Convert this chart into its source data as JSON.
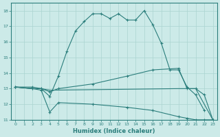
{
  "xlabel": "Humidex (Indice chaleur)",
  "bg_color": "#cceae8",
  "grid_color": "#aad4d0",
  "line_color": "#2a7d7b",
  "xlim": [
    -0.5,
    23.5
  ],
  "ylim": [
    11,
    18.5
  ],
  "yticks": [
    11,
    12,
    13,
    14,
    15,
    16,
    17,
    18
  ],
  "xticks": [
    0,
    1,
    2,
    3,
    4,
    5,
    6,
    7,
    8,
    9,
    10,
    11,
    12,
    13,
    14,
    15,
    16,
    17,
    18,
    19,
    20,
    21,
    22,
    23
  ],
  "lines": [
    {
      "x": [
        0,
        2,
        3,
        4,
        5,
        6,
        7,
        8,
        9,
        10,
        11,
        12,
        13,
        14,
        15,
        16,
        17,
        18,
        19,
        20,
        21,
        22
      ],
      "y": [
        13.1,
        13.1,
        13.0,
        12.5,
        13.8,
        15.4,
        16.7,
        17.3,
        17.8,
        17.8,
        17.5,
        17.8,
        17.4,
        17.4,
        18.0,
        17.1,
        15.9,
        14.2,
        14.2,
        13.1,
        12.6,
        11.6
      ],
      "marker": true
    },
    {
      "x": [
        0,
        2,
        3,
        4,
        5,
        9,
        13,
        16,
        19,
        20,
        21,
        22,
        23
      ],
      "y": [
        13.1,
        13.0,
        13.0,
        12.8,
        13.0,
        13.3,
        13.8,
        14.2,
        14.3,
        13.0,
        13.0,
        12.6,
        11.0
      ],
      "marker": true
    },
    {
      "x": [
        0,
        2,
        3,
        4,
        5,
        9,
        13,
        16,
        19,
        20,
        21,
        22,
        23
      ],
      "y": [
        13.1,
        13.0,
        12.9,
        11.5,
        12.1,
        12.0,
        11.8,
        11.6,
        11.2,
        11.1,
        11.0,
        11.0,
        11.0
      ],
      "marker": true
    },
    {
      "x": [
        0,
        2,
        3,
        4,
        19,
        20,
        21,
        22,
        23
      ],
      "y": [
        13.1,
        13.0,
        13.0,
        12.9,
        13.0,
        13.0,
        13.0,
        12.0,
        11.0
      ],
      "marker": false
    }
  ]
}
